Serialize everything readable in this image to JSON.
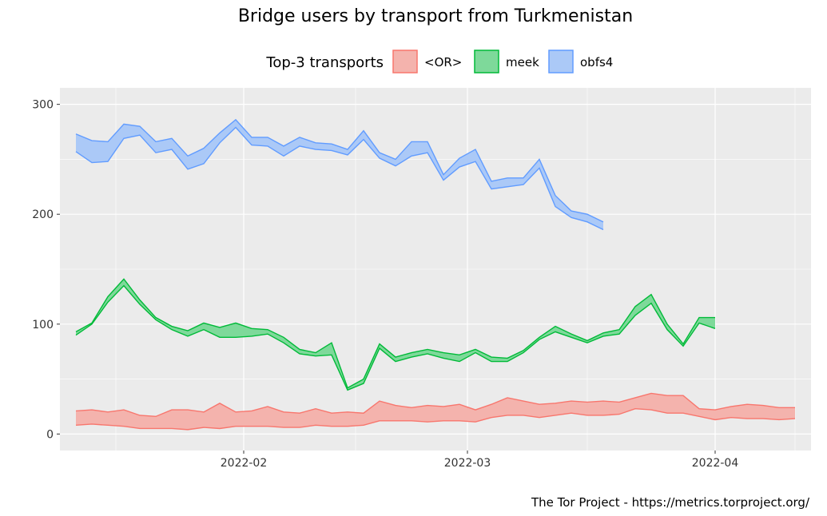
{
  "chart_data": {
    "type": "area",
    "title": "Bridge users by transport from Turkmenistan",
    "caption": "The Tor Project - https://metrics.torproject.org/",
    "legend": {
      "title": "Top-3 transports",
      "position": "top"
    },
    "x_axis": {
      "ticks": [
        "2022-02",
        "2022-03",
        "2022-04"
      ],
      "start": "2022-01-11",
      "end": "2022-04-11"
    },
    "y_axis": {
      "ticks": [
        0,
        100,
        200,
        300
      ],
      "ylim": [
        -15,
        300
      ]
    },
    "grid": true,
    "colors": {
      "panel_bg": "#ebebeb",
      "grid": "#ffffff"
    },
    "series": [
      {
        "name": "<OR>",
        "line_color": "#f8766d",
        "fill_color": "#f4b3ad",
        "points": [
          [
            "2022-01-11",
            8,
            21
          ],
          [
            "2022-01-13",
            9,
            22
          ],
          [
            "2022-01-15",
            8,
            20
          ],
          [
            "2022-01-17",
            7,
            22
          ],
          [
            "2022-01-19",
            5,
            17
          ],
          [
            "2022-01-21",
            5,
            16
          ],
          [
            "2022-01-23",
            5,
            22
          ],
          [
            "2022-01-25",
            4,
            22
          ],
          [
            "2022-01-27",
            6,
            20
          ],
          [
            "2022-01-29",
            5,
            28
          ],
          [
            "2022-01-31",
            7,
            20
          ],
          [
            "2022-02-02",
            7,
            21
          ],
          [
            "2022-02-04",
            7,
            25
          ],
          [
            "2022-02-06",
            6,
            20
          ],
          [
            "2022-02-08",
            6,
            19
          ],
          [
            "2022-02-10",
            8,
            23
          ],
          [
            "2022-02-12",
            7,
            19
          ],
          [
            "2022-02-14",
            7,
            20
          ],
          [
            "2022-02-16",
            8,
            19
          ],
          [
            "2022-02-18",
            12,
            30
          ],
          [
            "2022-02-20",
            12,
            26
          ],
          [
            "2022-02-22",
            12,
            24
          ],
          [
            "2022-02-24",
            11,
            26
          ],
          [
            "2022-02-26",
            12,
            25
          ],
          [
            "2022-02-28",
            12,
            27
          ],
          [
            "2022-03-02",
            11,
            22
          ],
          [
            "2022-03-04",
            15,
            27
          ],
          [
            "2022-03-06",
            17,
            33
          ],
          [
            "2022-03-08",
            17,
            30
          ],
          [
            "2022-03-10",
            15,
            27
          ],
          [
            "2022-03-12",
            17,
            28
          ],
          [
            "2022-03-14",
            19,
            30
          ],
          [
            "2022-03-16",
            17,
            29
          ],
          [
            "2022-03-18",
            17,
            30
          ],
          [
            "2022-03-20",
            18,
            29
          ],
          [
            "2022-03-22",
            23,
            33
          ],
          [
            "2022-03-24",
            22,
            37
          ],
          [
            "2022-03-26",
            19,
            35
          ],
          [
            "2022-03-28",
            19,
            35
          ],
          [
            "2022-03-30",
            16,
            23
          ],
          [
            "2022-04-01",
            13,
            22
          ],
          [
            "2022-04-03",
            15,
            25
          ],
          [
            "2022-04-05",
            14,
            27
          ],
          [
            "2022-04-07",
            14,
            26
          ],
          [
            "2022-04-09",
            13,
            24
          ],
          [
            "2022-04-11",
            14,
            24
          ]
        ]
      },
      {
        "name": "meek",
        "line_color": "#00ba38",
        "fill_color": "#7ed99a",
        "points": [
          [
            "2022-01-11",
            90,
            93
          ],
          [
            "2022-01-13",
            100,
            101
          ],
          [
            "2022-01-15",
            120,
            125
          ],
          [
            "2022-01-17",
            135,
            141
          ],
          [
            "2022-01-19",
            118,
            122
          ],
          [
            "2022-01-21",
            104,
            106
          ],
          [
            "2022-01-23",
            95,
            98
          ],
          [
            "2022-01-25",
            89,
            94
          ],
          [
            "2022-01-27",
            95,
            101
          ],
          [
            "2022-01-29",
            88,
            97
          ],
          [
            "2022-01-31",
            88,
            101
          ],
          [
            "2022-02-02",
            89,
            96
          ],
          [
            "2022-02-04",
            91,
            95
          ],
          [
            "2022-02-06",
            83,
            88
          ],
          [
            "2022-02-08",
            73,
            77
          ],
          [
            "2022-02-10",
            71,
            74
          ],
          [
            "2022-02-12",
            72,
            83
          ],
          [
            "2022-02-14",
            40,
            42
          ],
          [
            "2022-02-16",
            46,
            50
          ],
          [
            "2022-02-18",
            78,
            82
          ],
          [
            "2022-02-20",
            66,
            70
          ],
          [
            "2022-02-22",
            70,
            74
          ],
          [
            "2022-02-24",
            73,
            77
          ],
          [
            "2022-02-26",
            69,
            74
          ],
          [
            "2022-02-28",
            66,
            72
          ],
          [
            "2022-03-02",
            74,
            77
          ],
          [
            "2022-03-04",
            66,
            70
          ],
          [
            "2022-03-06",
            66,
            69
          ],
          [
            "2022-03-08",
            74,
            76
          ],
          [
            "2022-03-10",
            86,
            88
          ],
          [
            "2022-03-12",
            93,
            98
          ],
          [
            "2022-03-14",
            88,
            91
          ],
          [
            "2022-03-16",
            83,
            85
          ],
          [
            "2022-03-18",
            89,
            92
          ],
          [
            "2022-03-20",
            91,
            95
          ],
          [
            "2022-03-22",
            108,
            116
          ],
          [
            "2022-03-24",
            119,
            127
          ],
          [
            "2022-03-26",
            95,
            100
          ],
          [
            "2022-03-28",
            80,
            82
          ],
          [
            "2022-03-30",
            101,
            106
          ],
          [
            "2022-04-01",
            96,
            106
          ]
        ]
      },
      {
        "name": "obfs4",
        "line_color": "#619cff",
        "fill_color": "#abc9f7",
        "points": [
          [
            "2022-01-11",
            257,
            273
          ],
          [
            "2022-01-13",
            247,
            267
          ],
          [
            "2022-01-15",
            248,
            266
          ],
          [
            "2022-01-17",
            269,
            282
          ],
          [
            "2022-01-19",
            272,
            280
          ],
          [
            "2022-01-21",
            256,
            266
          ],
          [
            "2022-01-23",
            259,
            269
          ],
          [
            "2022-01-25",
            241,
            253
          ],
          [
            "2022-01-27",
            246,
            260
          ],
          [
            "2022-01-29",
            265,
            274
          ],
          [
            "2022-01-31",
            279,
            286
          ],
          [
            "2022-02-02",
            263,
            270
          ],
          [
            "2022-02-04",
            262,
            270
          ],
          [
            "2022-02-06",
            253,
            262
          ],
          [
            "2022-02-08",
            262,
            270
          ],
          [
            "2022-02-10",
            259,
            265
          ],
          [
            "2022-02-12",
            258,
            264
          ],
          [
            "2022-02-14",
            254,
            259
          ],
          [
            "2022-02-16",
            268,
            276
          ],
          [
            "2022-02-18",
            251,
            256
          ],
          [
            "2022-02-20",
            244,
            250
          ],
          [
            "2022-02-22",
            253,
            266
          ],
          [
            "2022-02-24",
            256,
            266
          ],
          [
            "2022-02-26",
            231,
            236
          ],
          [
            "2022-02-28",
            243,
            251
          ],
          [
            "2022-03-02",
            248,
            259
          ],
          [
            "2022-03-04",
            223,
            230
          ],
          [
            "2022-03-06",
            225,
            233
          ],
          [
            "2022-03-08",
            227,
            233
          ],
          [
            "2022-03-10",
            242,
            250
          ],
          [
            "2022-03-12",
            207,
            217
          ],
          [
            "2022-03-14",
            197,
            203
          ],
          [
            "2022-03-16",
            193,
            200
          ],
          [
            "2022-03-18",
            186,
            193
          ]
        ]
      }
    ]
  }
}
